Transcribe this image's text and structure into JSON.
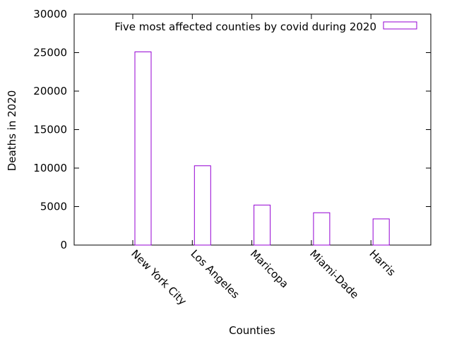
{
  "chart_data": {
    "type": "bar",
    "title": "",
    "xlabel": "Counties",
    "ylabel": "Deaths in 2020",
    "categories": [
      "New York City",
      "Los Angeles",
      "Maricopa",
      "Miami-Dade",
      "Harris"
    ],
    "series": [
      {
        "name": "Five most affected counties by covid during 2020",
        "values": [
          25100,
          10300,
          5200,
          4200,
          3400
        ]
      }
    ],
    "ylim": [
      0,
      30000
    ],
    "yticks": [
      "0",
      "5000",
      "10000",
      "15000",
      "20000",
      "25000",
      "30000"
    ],
    "grid": false,
    "legend_position": "top-right",
    "bar_color": "#9400d3"
  }
}
